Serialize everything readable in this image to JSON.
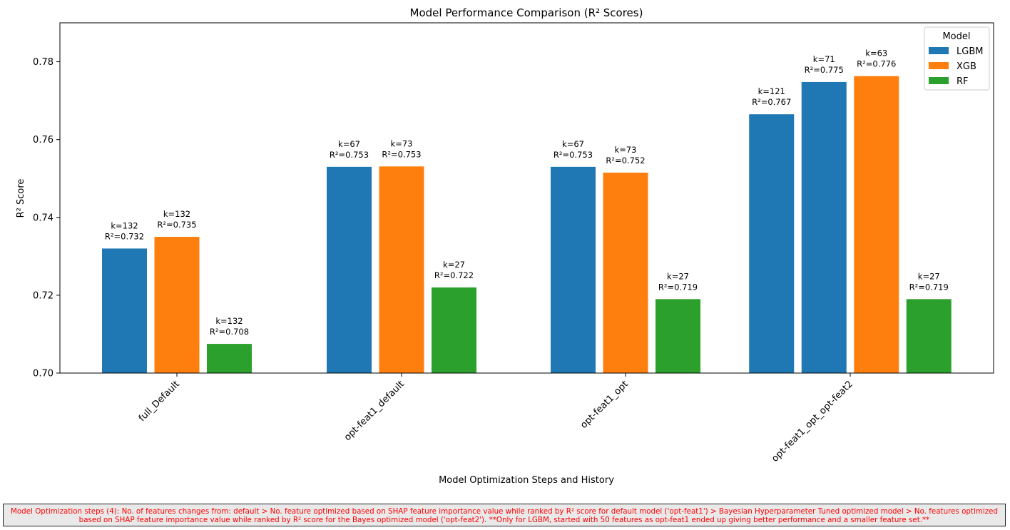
{
  "chart_data": {
    "type": "bar",
    "title": "Model Performance Comparison (R² Scores)",
    "xlabel": "Model Optimization Steps and History",
    "ylabel": "R² Score",
    "ylim": [
      0.7,
      0.79
    ],
    "yticks": [
      "0.70",
      "0.72",
      "0.74",
      "0.76",
      "0.78"
    ],
    "grid": false,
    "legend": {
      "title": "Model",
      "placement": "top-right"
    },
    "groups": [
      {
        "category": "full_Default",
        "bars": [
          {
            "model": "LGBM",
            "value": 0.732,
            "label_k": "k=132",
            "label_r2": "R²=0.732"
          },
          {
            "model": "XGB",
            "value": 0.735,
            "label_k": "k=132",
            "label_r2": "R²=0.735"
          },
          {
            "model": "RF",
            "value": 0.7075,
            "label_k": "k=132",
            "label_r2": "R²=0.708"
          }
        ]
      },
      {
        "category": "opt-feat1_default",
        "bars": [
          {
            "model": "LGBM",
            "value": 0.753,
            "label_k": "k=67",
            "label_r2": "R²=0.753"
          },
          {
            "model": "XGB",
            "value": 0.7531,
            "label_k": "k=73",
            "label_r2": "R²=0.753"
          },
          {
            "model": "RF",
            "value": 0.722,
            "label_k": "k=27",
            "label_r2": "R²=0.722"
          }
        ]
      },
      {
        "category": "opt-feat1_opt",
        "bars": [
          {
            "model": "LGBM",
            "value": 0.753,
            "label_k": "k=67",
            "label_r2": "R²=0.753"
          },
          {
            "model": "XGB",
            "value": 0.7515,
            "label_k": "k=73",
            "label_r2": "R²=0.752"
          },
          {
            "model": "RF",
            "value": 0.719,
            "label_k": "k=27",
            "label_r2": "R²=0.719"
          }
        ]
      },
      {
        "category": "opt-feat1_opt_opt-feat2",
        "bars": [
          {
            "model": "LGBM",
            "value": 0.7665,
            "label_k": "k=121",
            "label_r2": "R²=0.767"
          },
          {
            "model": "LGBM",
            "value": 0.7748,
            "label_k": "k=71",
            "label_r2": "R²=0.775"
          },
          {
            "model": "XGB",
            "value": 0.7763,
            "label_k": "k=63",
            "label_r2": "R²=0.776"
          },
          {
            "model": "RF",
            "value": 0.719,
            "label_k": "k=27",
            "label_r2": "R²=0.719"
          }
        ]
      }
    ],
    "series": [
      {
        "name": "LGBM",
        "color": "#1f77b4"
      },
      {
        "name": "XGB",
        "color": "#ff7f0e"
      },
      {
        "name": "RF",
        "color": "#2ca02c"
      }
    ]
  },
  "footnote": "Model Optimization steps (4): No. of features changes from: default > No. feature optimized based on SHAP feature importance value while ranked by R² score for default model ('opt-feat1') > Bayesian Hyperparameter Tuned optimized model > No. features optimized based on SHAP feature importance value while ranked by R² score for the Bayes optimized model ('opt-feat2'). **Only for LGBM, started with 50 features as opt-feat1 ended up giving better performance and a smaller feature set.**"
}
